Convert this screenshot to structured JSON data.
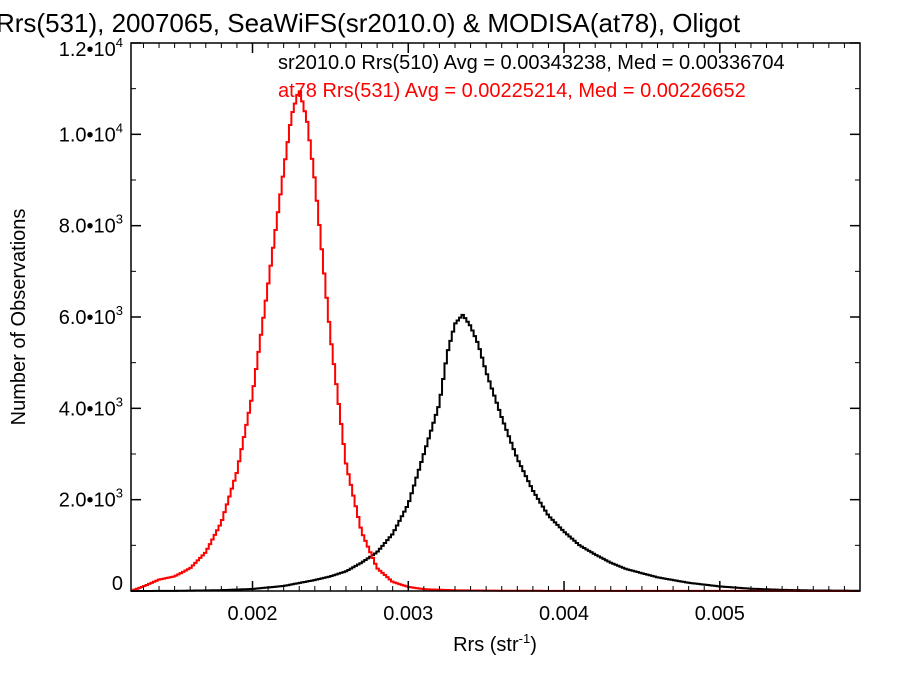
{
  "chart_data": {
    "type": "line",
    "title": "Rrs(531), 2007065, SeaWiFS(sr2010.0) & MODISA(at78), Oligot",
    "xlabel": {
      "base": "Rrs (str",
      "sup": "-1",
      "tail": ")"
    },
    "ylabel": "Number of Observations",
    "xlim": [
      0.00122,
      0.0059
    ],
    "ylim": [
      0,
      12000
    ],
    "x_ticks": [
      {
        "value": 0.002,
        "label": "0.002"
      },
      {
        "value": 0.003,
        "label": "0.003"
      },
      {
        "value": 0.004,
        "label": "0.004"
      },
      {
        "value": 0.005,
        "label": "0.005"
      }
    ],
    "y_ticks": [
      {
        "value": 0,
        "label": "0"
      },
      {
        "value": 2000,
        "label": "2.0•10",
        "exp": "3"
      },
      {
        "value": 4000,
        "label": "4.0•10",
        "exp": "3"
      },
      {
        "value": 6000,
        "label": "6.0•10",
        "exp": "3"
      },
      {
        "value": 8000,
        "label": "8.0•10",
        "exp": "3"
      },
      {
        "value": 10000,
        "label": "1.0•10",
        "exp": "4"
      },
      {
        "value": 12000,
        "label": "1.2•10",
        "exp": "4"
      }
    ],
    "annotations": [
      {
        "text": "sr2010.0 Rrs(510) Avg = 0.00343238, Med = 0.00336704",
        "color": "#000000"
      },
      {
        "text": "at78 Rrs(531) Avg = 0.00225214, Med = 0.00226652",
        "color": "#ff0000"
      }
    ],
    "series": [
      {
        "color": "#000000",
        "points": [
          [
            0.00122,
            0
          ],
          [
            0.0015,
            3
          ],
          [
            0.0018,
            18
          ],
          [
            0.002,
            45
          ],
          [
            0.0022,
            110
          ],
          [
            0.0024,
            240
          ],
          [
            0.0025,
            320
          ],
          [
            0.0026,
            430
          ],
          [
            0.0027,
            620
          ],
          [
            0.0028,
            850
          ],
          [
            0.0029,
            1250
          ],
          [
            0.003,
            1900
          ],
          [
            0.0031,
            3000
          ],
          [
            0.0032,
            4100
          ],
          [
            0.00325,
            5200
          ],
          [
            0.0033,
            5850
          ],
          [
            0.00335,
            6050
          ],
          [
            0.0034,
            5800
          ],
          [
            0.00345,
            5400
          ],
          [
            0.0035,
            4800
          ],
          [
            0.0036,
            3800
          ],
          [
            0.0037,
            2900
          ],
          [
            0.0038,
            2200
          ],
          [
            0.0039,
            1650
          ],
          [
            0.004,
            1300
          ],
          [
            0.0041,
            1000
          ],
          [
            0.0042,
            800
          ],
          [
            0.0043,
            620
          ],
          [
            0.0044,
            480
          ],
          [
            0.0046,
            300
          ],
          [
            0.0048,
            180
          ],
          [
            0.005,
            100
          ],
          [
            0.0052,
            50
          ],
          [
            0.0054,
            25
          ],
          [
            0.0056,
            12
          ],
          [
            0.0059,
            5
          ]
        ]
      },
      {
        "color": "#ff0000",
        "points": [
          [
            0.00122,
            0
          ],
          [
            0.0013,
            100
          ],
          [
            0.0014,
            250
          ],
          [
            0.0015,
            320
          ],
          [
            0.0016,
            500
          ],
          [
            0.0017,
            850
          ],
          [
            0.0018,
            1500
          ],
          [
            0.0019,
            2600
          ],
          [
            0.002,
            4300
          ],
          [
            0.0021,
            6700
          ],
          [
            0.0022,
            9200
          ],
          [
            0.00225,
            10400
          ],
          [
            0.0023,
            11000
          ],
          [
            0.00235,
            10300
          ],
          [
            0.0024,
            9000
          ],
          [
            0.0025,
            5600
          ],
          [
            0.0026,
            2800
          ],
          [
            0.0027,
            1300
          ],
          [
            0.0028,
            500
          ],
          [
            0.0029,
            200
          ],
          [
            0.003,
            90
          ],
          [
            0.0031,
            40
          ],
          [
            0.0033,
            15
          ],
          [
            0.0036,
            6
          ],
          [
            0.004,
            3
          ],
          [
            0.0059,
            1
          ]
        ]
      }
    ]
  }
}
